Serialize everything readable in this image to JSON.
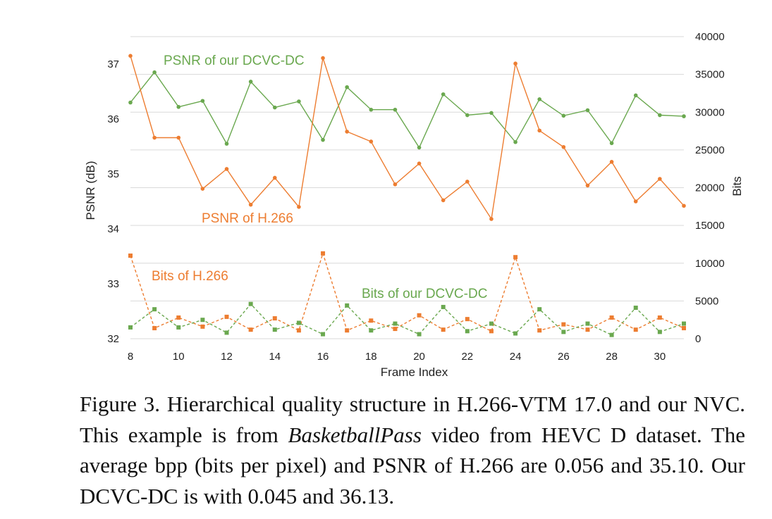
{
  "chart_data": {
    "type": "line",
    "xlabel": "Frame Index",
    "ylabel": "PSNR (dB)",
    "y2label": "Bits",
    "xlim": [
      8,
      31
    ],
    "ylim": [
      32,
      37.5
    ],
    "y2lim": [
      0,
      40000
    ],
    "x_ticks": [
      8,
      10,
      12,
      14,
      16,
      18,
      20,
      22,
      24,
      26,
      28,
      30
    ],
    "y_ticks": [
      32,
      33,
      34,
      35,
      36,
      37
    ],
    "y2_ticks": [
      0,
      5000,
      10000,
      15000,
      20000,
      25000,
      30000,
      35000,
      40000
    ],
    "grid": "horizontal",
    "x": [
      8,
      9,
      10,
      11,
      12,
      13,
      14,
      15,
      16,
      17,
      18,
      19,
      20,
      21,
      22,
      23,
      24,
      25,
      26,
      27,
      28,
      29,
      30,
      31
    ],
    "series": [
      {
        "name": "PSNR of our DCVC-DC",
        "axis": "left",
        "style": "solid",
        "marker": "circle",
        "color": "#6aa84f",
        "values": [
          36.3,
          36.85,
          36.22,
          36.33,
          35.55,
          36.68,
          36.21,
          36.32,
          35.62,
          36.58,
          36.17,
          36.17,
          35.48,
          36.45,
          36.07,
          36.11,
          35.58,
          36.36,
          36.06,
          36.16,
          35.56,
          36.43,
          36.07,
          36.05
        ]
      },
      {
        "name": "PSNR of H.266",
        "axis": "left",
        "style": "solid",
        "marker": "circle",
        "color": "#ed7d31",
        "values": [
          37.15,
          35.66,
          35.66,
          34.73,
          35.09,
          34.44,
          34.93,
          34.4,
          37.11,
          35.77,
          35.59,
          34.81,
          35.19,
          34.52,
          34.86,
          34.18,
          37.01,
          35.79,
          35.49,
          34.79,
          35.22,
          34.5,
          34.91,
          34.42
        ]
      },
      {
        "name": "Bits of H.266",
        "axis": "right",
        "style": "dashed",
        "marker": "square",
        "color": "#ed7d31",
        "values": [
          11000,
          1400,
          2800,
          1600,
          2900,
          1200,
          2700,
          1100,
          11300,
          1100,
          2400,
          1300,
          3100,
          1200,
          2600,
          1000,
          10800,
          1100,
          1900,
          1200,
          2800,
          1200,
          2800,
          1400
        ]
      },
      {
        "name": "Bits of our DCVC-DC",
        "axis": "right",
        "style": "dashed",
        "marker": "square",
        "color": "#6aa84f",
        "values": [
          1500,
          3900,
          1500,
          2500,
          800,
          4600,
          1200,
          2100,
          600,
          4400,
          1100,
          2000,
          600,
          4200,
          1000,
          2000,
          700,
          3900,
          900,
          2000,
          500,
          4100,
          900,
          2000
        ]
      }
    ]
  },
  "caption": {
    "part1": "Figure 3.  Hierarchical quality structure in H.266-VTM 17.0 and our NVC. This example is from ",
    "italic": "BasketballPass",
    "part2": " video from HEVC D dataset.  The average bpp (bits per pixel) and PSNR of H.266 are 0.056 and 35.10. Our DCVC-DC is with 0.045 and 36.13."
  }
}
